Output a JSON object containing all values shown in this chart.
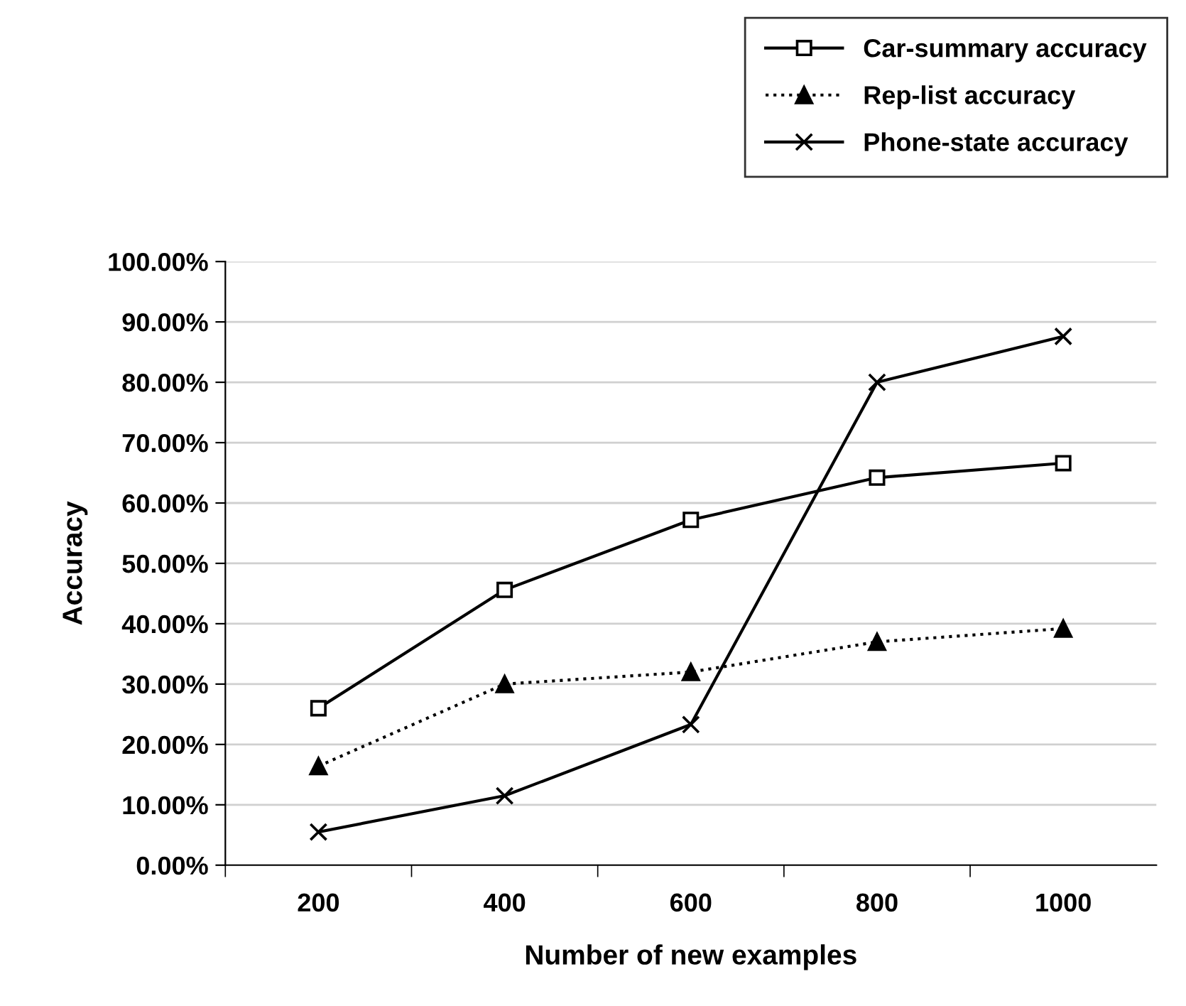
{
  "chart_data": {
    "type": "line",
    "xlabel": "Number of new examples",
    "ylabel": "Accuracy",
    "categories": [
      "200",
      "400",
      "600",
      "800",
      "1000"
    ],
    "series": [
      {
        "name": "Car-summary accuracy",
        "color": "#000000",
        "marker": "square",
        "line_style": "solid",
        "values": [
          26.0,
          45.6,
          57.2,
          64.2,
          66.6
        ]
      },
      {
        "name": "Rep-list accuracy",
        "color": "#000000",
        "marker": "triangle",
        "line_style": "dotted",
        "values": [
          16.4,
          30.0,
          32.0,
          37.0,
          39.2
        ]
      },
      {
        "name": "Phone-state accuracy",
        "color": "#000000",
        "marker": "cross",
        "line_style": "solid",
        "values": [
          5.5,
          11.5,
          23.3,
          80.0,
          87.6
        ]
      }
    ],
    "ylim": [
      0,
      100
    ],
    "yticks": [
      {
        "value": 0,
        "label": "0.00%"
      },
      {
        "value": 10,
        "label": "10.00%"
      },
      {
        "value": 20,
        "label": "20.00%"
      },
      {
        "value": 30,
        "label": "30.00%"
      },
      {
        "value": 40,
        "label": "40.00%"
      },
      {
        "value": 50,
        "label": "50.00%"
      },
      {
        "value": 60,
        "label": "60.00%"
      },
      {
        "value": 70,
        "label": "70.00%"
      },
      {
        "value": 80,
        "label": "80.00%"
      },
      {
        "value": 90,
        "label": "90.00%"
      },
      {
        "value": 100,
        "label": "100.00%"
      }
    ],
    "grid": "y",
    "legend": "top right"
  }
}
